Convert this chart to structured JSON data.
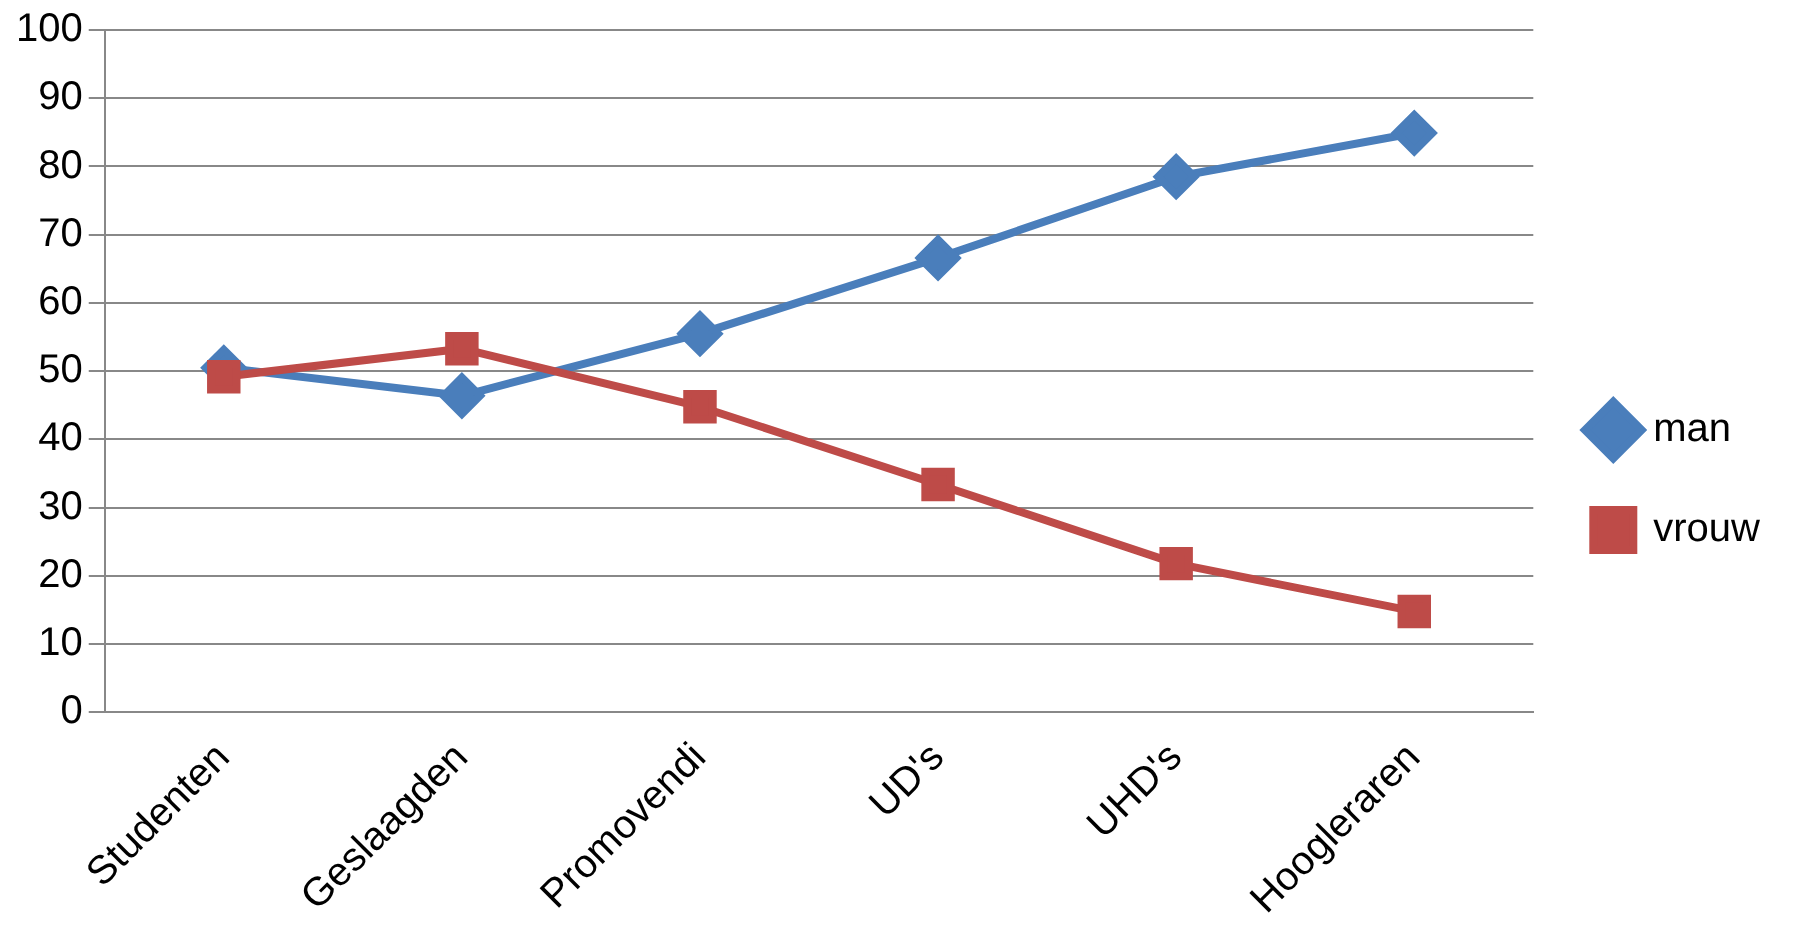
{
  "chart_data": {
    "type": "line",
    "categories": [
      "Studenten",
      "Geslaagden",
      "Promovendi",
      "UD's",
      "UHD's",
      "Hoogleraren"
    ],
    "series": [
      {
        "name": "man",
        "color": "#4a7ebb",
        "marker": "diamond",
        "values": [
          50.5,
          46.4,
          55.5,
          66.6,
          78.5,
          84.9
        ]
      },
      {
        "name": "vrouw",
        "color": "#be4b48",
        "marker": "square",
        "values": [
          49.2,
          53.3,
          44.8,
          33.4,
          21.8,
          14.8
        ]
      }
    ],
    "ylim": [
      0,
      100
    ],
    "yticks": [
      0,
      10,
      20,
      30,
      40,
      50,
      60,
      70,
      80,
      90,
      100
    ],
    "grid": "y",
    "legend": "right",
    "line_style": "solid"
  }
}
